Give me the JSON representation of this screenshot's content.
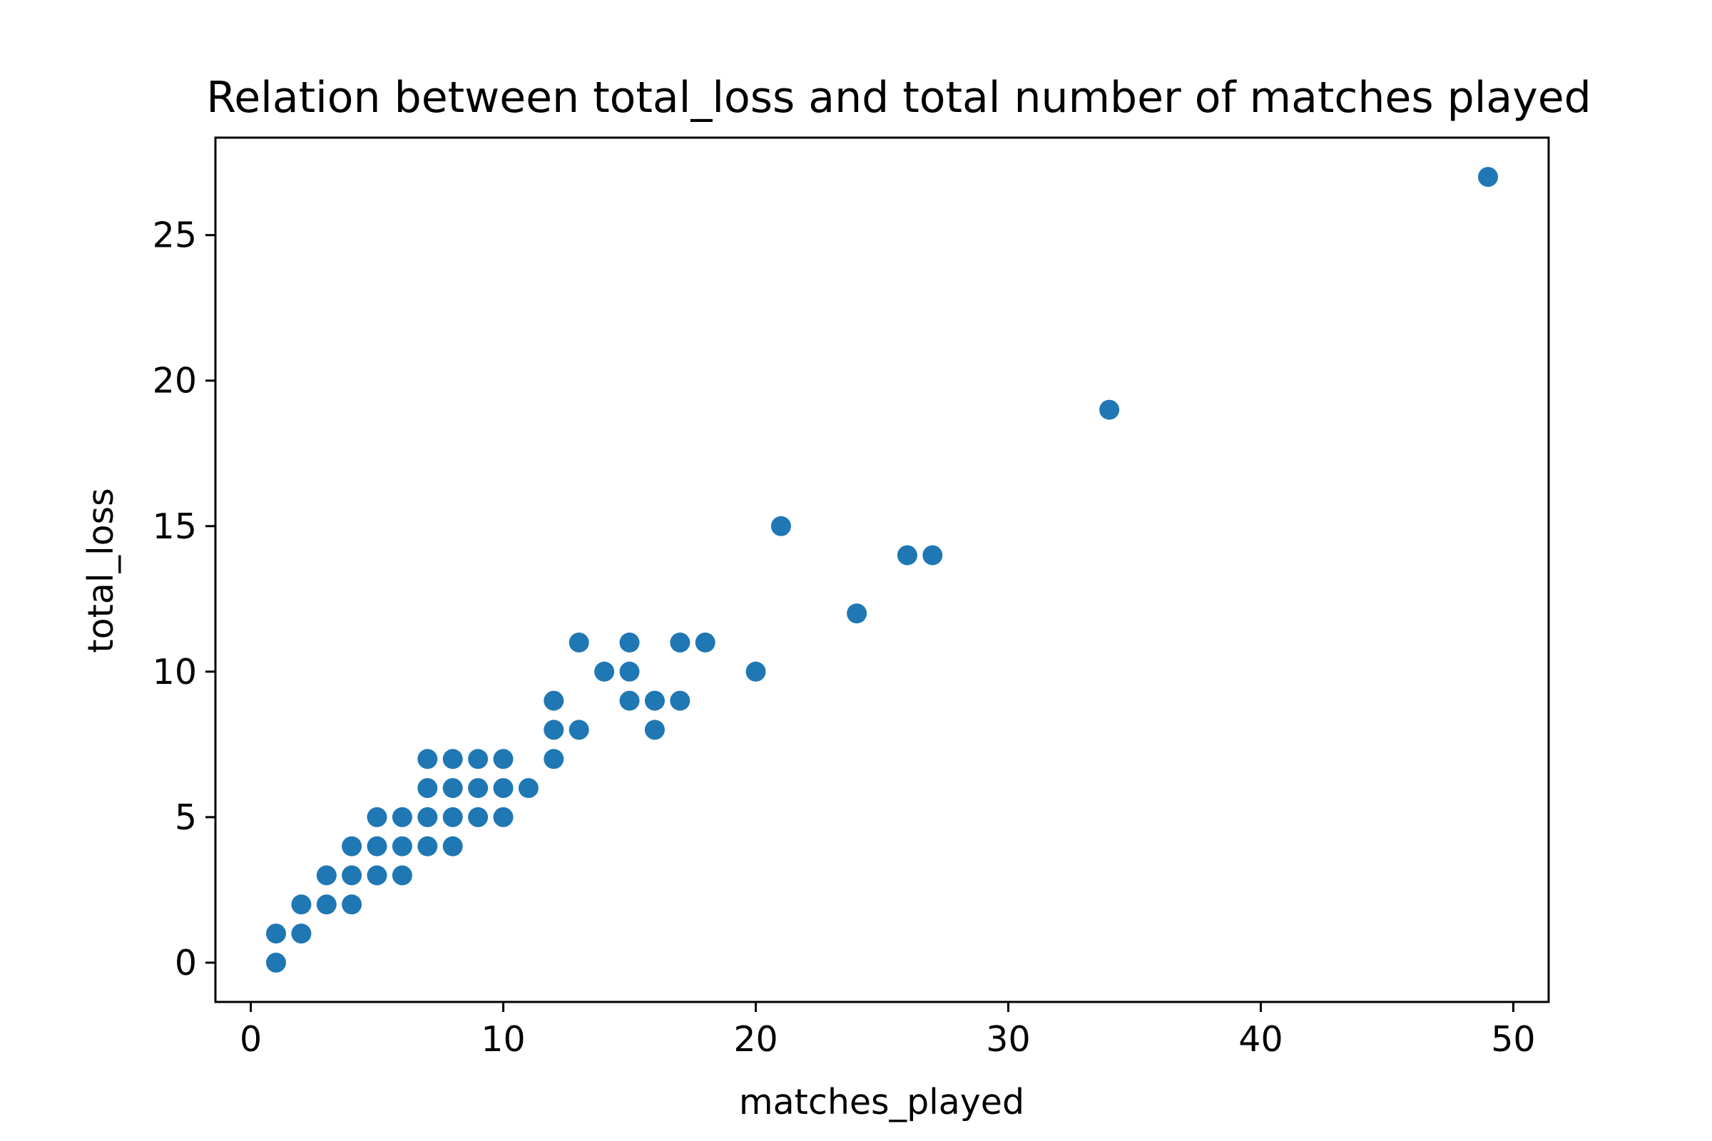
{
  "chart_data": {
    "type": "scatter",
    "title": "Relation between total_loss and total number of matches played",
    "xlabel": "matches_played",
    "ylabel": "total_loss",
    "xlim": [
      -1.4,
      51.4
    ],
    "ylim": [
      -1.35,
      28.35
    ],
    "xticks": [
      0,
      10,
      20,
      30,
      40,
      50
    ],
    "yticks": [
      0,
      5,
      10,
      15,
      20,
      25
    ],
    "grid": false,
    "legend": "none",
    "marker_color": "#1f77b4",
    "points": [
      {
        "x": 1,
        "y": 0
      },
      {
        "x": 1,
        "y": 1
      },
      {
        "x": 2,
        "y": 1
      },
      {
        "x": 2,
        "y": 2
      },
      {
        "x": 3,
        "y": 2
      },
      {
        "x": 3,
        "y": 3
      },
      {
        "x": 4,
        "y": 2
      },
      {
        "x": 4,
        "y": 3
      },
      {
        "x": 4,
        "y": 4
      },
      {
        "x": 5,
        "y": 3
      },
      {
        "x": 5,
        "y": 4
      },
      {
        "x": 5,
        "y": 5
      },
      {
        "x": 6,
        "y": 3
      },
      {
        "x": 6,
        "y": 4
      },
      {
        "x": 6,
        "y": 5
      },
      {
        "x": 7,
        "y": 4
      },
      {
        "x": 7,
        "y": 5
      },
      {
        "x": 7,
        "y": 6
      },
      {
        "x": 7,
        "y": 7
      },
      {
        "x": 8,
        "y": 4
      },
      {
        "x": 8,
        "y": 5
      },
      {
        "x": 8,
        "y": 6
      },
      {
        "x": 8,
        "y": 7
      },
      {
        "x": 9,
        "y": 5
      },
      {
        "x": 9,
        "y": 6
      },
      {
        "x": 9,
        "y": 7
      },
      {
        "x": 10,
        "y": 5
      },
      {
        "x": 10,
        "y": 6
      },
      {
        "x": 10,
        "y": 7
      },
      {
        "x": 11,
        "y": 6
      },
      {
        "x": 12,
        "y": 7
      },
      {
        "x": 12,
        "y": 8
      },
      {
        "x": 12,
        "y": 9
      },
      {
        "x": 13,
        "y": 8
      },
      {
        "x": 13,
        "y": 11
      },
      {
        "x": 14,
        "y": 10
      },
      {
        "x": 15,
        "y": 9
      },
      {
        "x": 15,
        "y": 10
      },
      {
        "x": 15,
        "y": 11
      },
      {
        "x": 16,
        "y": 8
      },
      {
        "x": 16,
        "y": 9
      },
      {
        "x": 17,
        "y": 9
      },
      {
        "x": 17,
        "y": 11
      },
      {
        "x": 18,
        "y": 11
      },
      {
        "x": 20,
        "y": 10
      },
      {
        "x": 21,
        "y": 15
      },
      {
        "x": 24,
        "y": 12
      },
      {
        "x": 26,
        "y": 14
      },
      {
        "x": 27,
        "y": 14
      },
      {
        "x": 34,
        "y": 19
      },
      {
        "x": 49,
        "y": 27
      }
    ]
  }
}
